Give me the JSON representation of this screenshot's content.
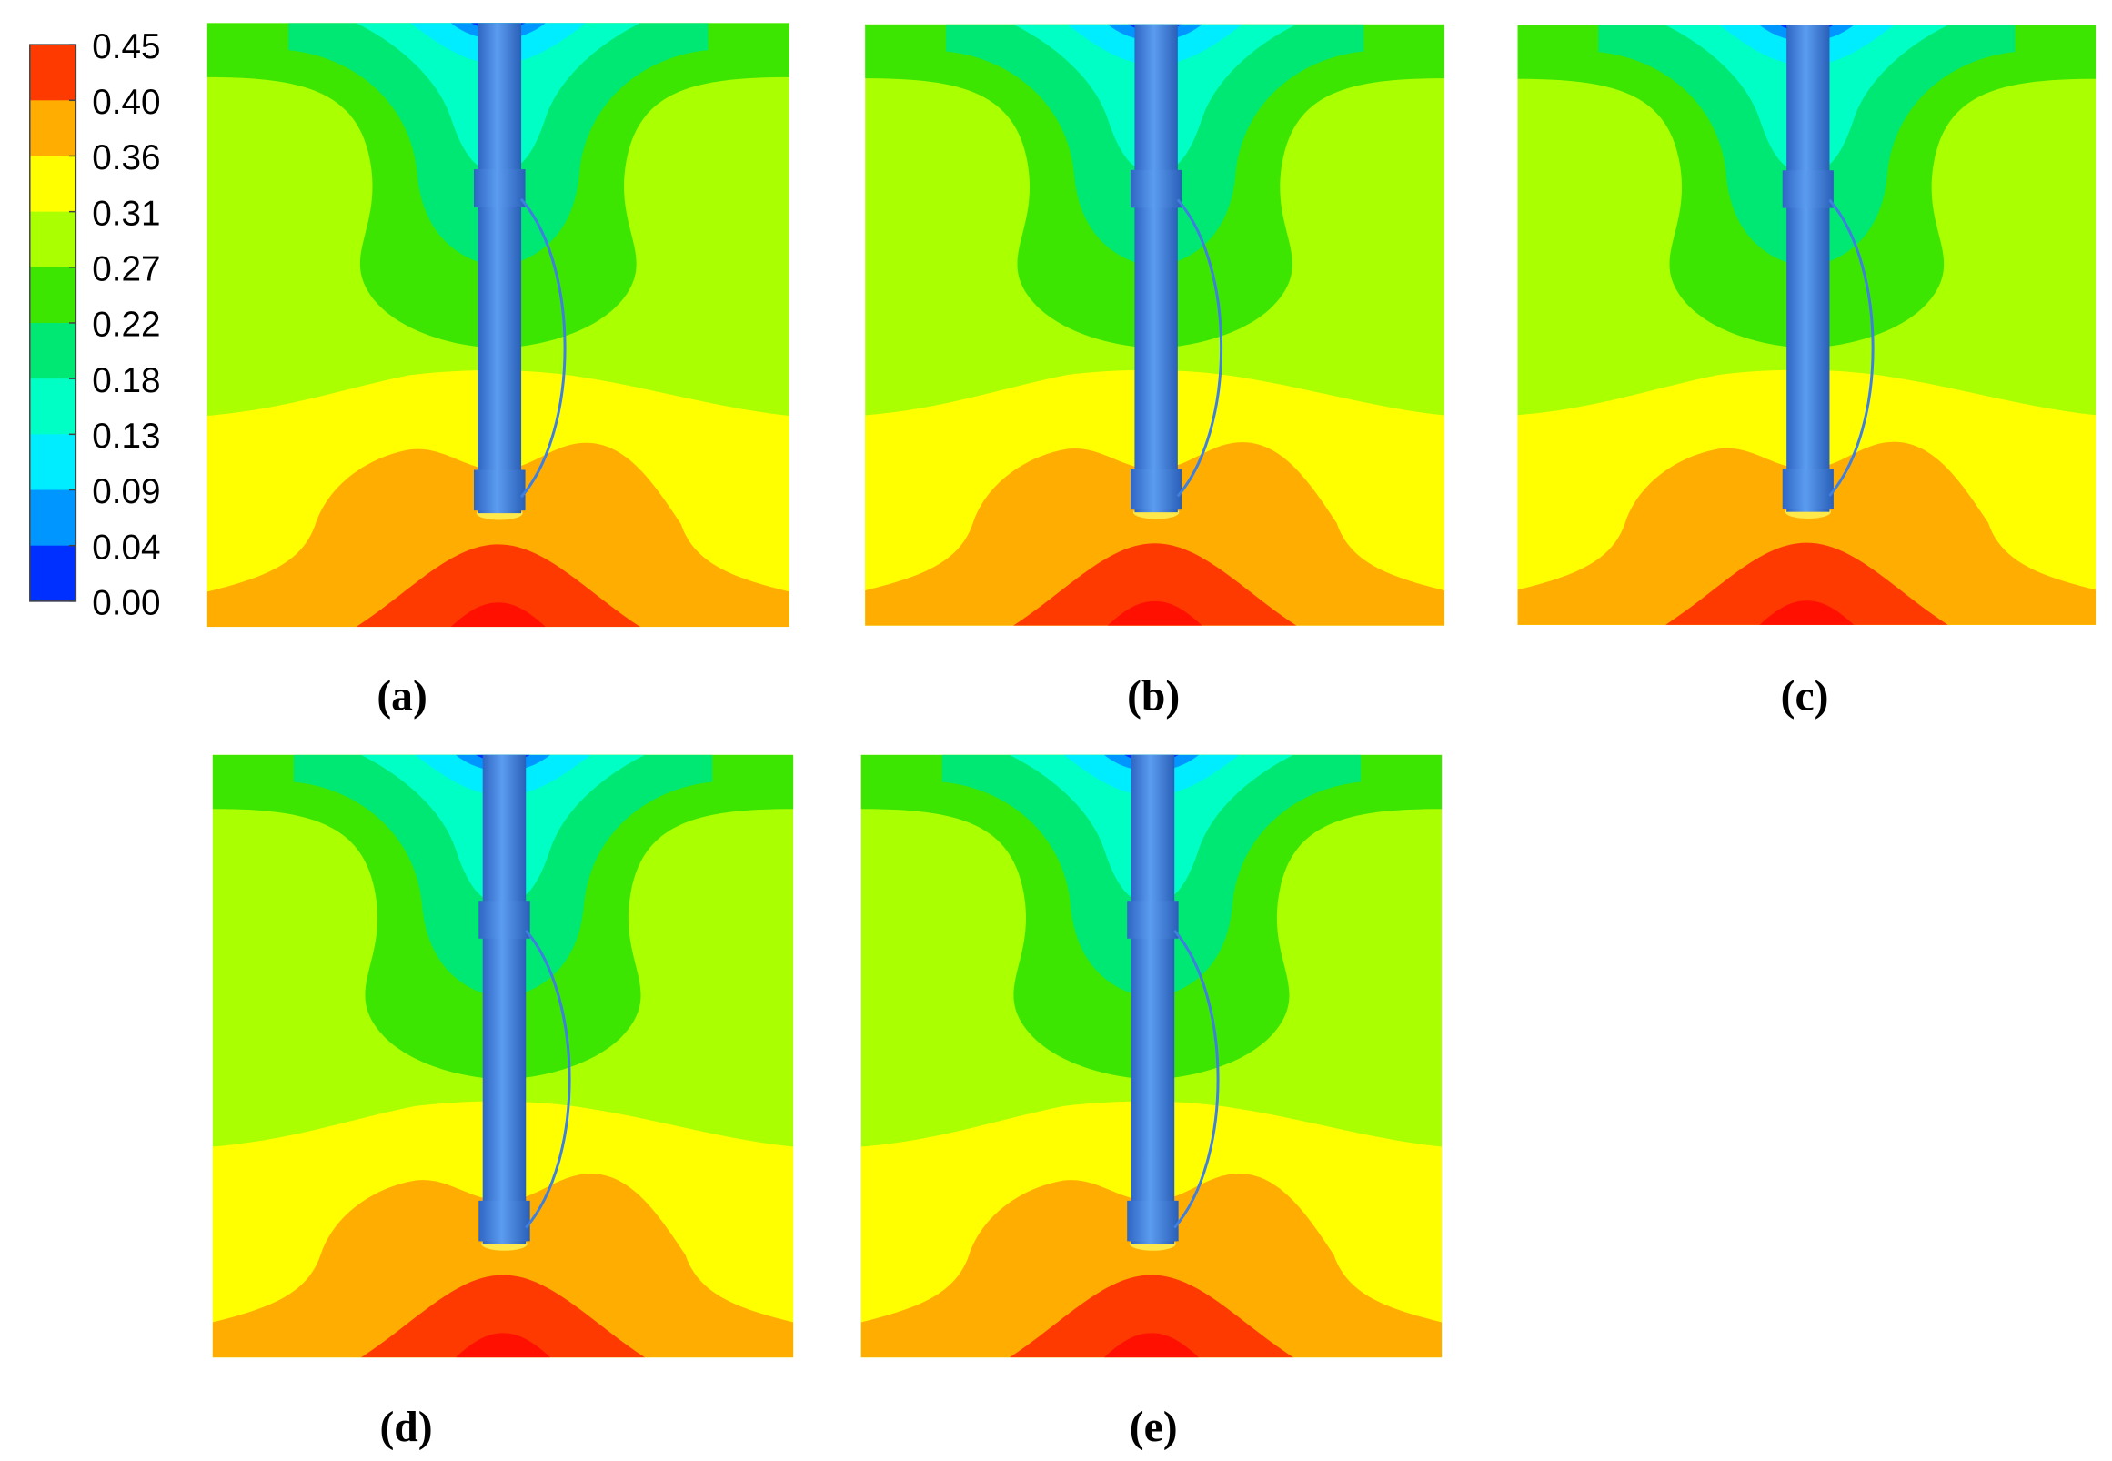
{
  "colorbar": {
    "labels": [
      "0.45",
      "0.40",
      "0.36",
      "0.31",
      "0.27",
      "0.22",
      "0.18",
      "0.13",
      "0.09",
      "0.04",
      "0.00"
    ],
    "colors": [
      "#ff3a00",
      "#ffad00",
      "#ffff00",
      "#aaff00",
      "#3ce600",
      "#00e874",
      "#00ffc4",
      "#00ecff",
      "#0096ff",
      "#0030ff"
    ]
  },
  "panels": [
    {
      "label": "(a)"
    },
    {
      "label": "(b)"
    },
    {
      "label": "(c)"
    },
    {
      "label": "(d)"
    },
    {
      "label": "(e)"
    }
  ]
}
